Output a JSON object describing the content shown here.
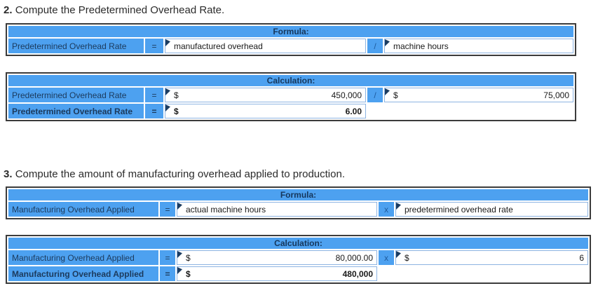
{
  "colors": {
    "table_blue": "#4da1f0",
    "input_cell_border": "#8db4e2",
    "outer_border": "#3c3c3c",
    "header_text": "#16375c",
    "marker_navy": "#1b3c61"
  },
  "section2": {
    "number": "2.",
    "title": "Compute the Predetermined Overhead Rate.",
    "formula": {
      "header": "Formula:",
      "row": {
        "label": "Predetermined Overhead Rate",
        "eq": "=",
        "input1": "manufactured overhead",
        "op": "/",
        "input2": "machine hours"
      }
    },
    "calculation": {
      "header": "Calculation:",
      "row1": {
        "label": "Predetermined Overhead Rate",
        "eq": "=",
        "cur1": "$",
        "val1": "450,000",
        "op": "/",
        "cur2": "$",
        "val2": "75,000"
      },
      "row2": {
        "label": "Predetermined Overhead Rate",
        "eq": "=",
        "cur": "$",
        "val": "6.00"
      }
    }
  },
  "section3": {
    "number": "3.",
    "title": "Compute the amount of manufacturing overhead applied to production.",
    "formula": {
      "header": "Formula:",
      "row": {
        "label": "Manufacturing Overhead Applied",
        "eq": "=",
        "input1": "actual machine hours",
        "op": "x",
        "input2": "predetermined overhead rate"
      }
    },
    "calculation": {
      "header": "Calculation:",
      "row1": {
        "label": "Manufacturing Overhead Applied",
        "eq": "=",
        "cur1": "$",
        "val1": "80,000.00",
        "op": "x",
        "cur2": "$",
        "val2": "6"
      },
      "row2": {
        "label": "Manufacturing Overhead Applied",
        "eq": "=",
        "cur": "$",
        "val": "480,000"
      }
    }
  }
}
